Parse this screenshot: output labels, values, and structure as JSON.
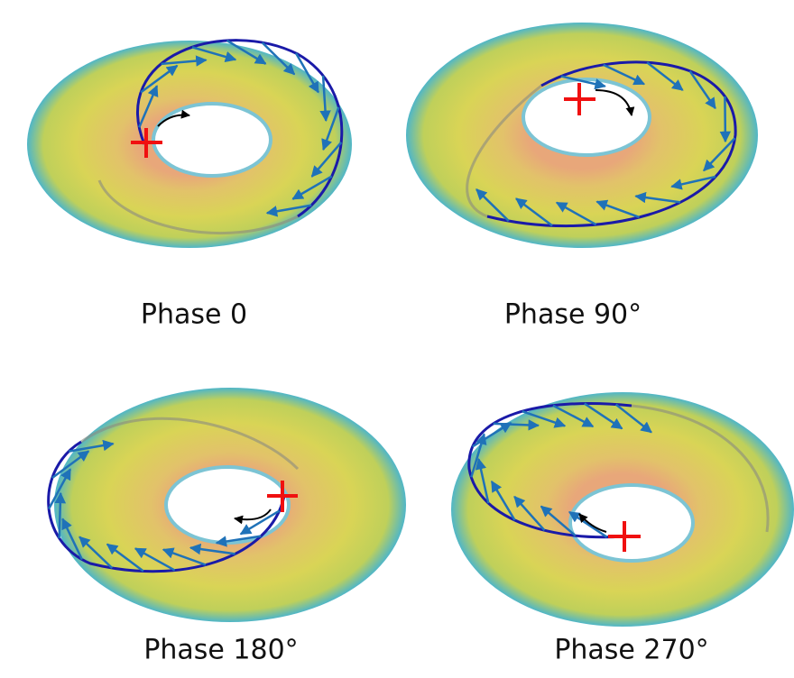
{
  "panels": [
    {
      "label": "Phase 0"
    },
    {
      "label": "Phase 90°"
    },
    {
      "label": "Phase 180°"
    },
    {
      "label": "Phase 270°"
    }
  ]
}
